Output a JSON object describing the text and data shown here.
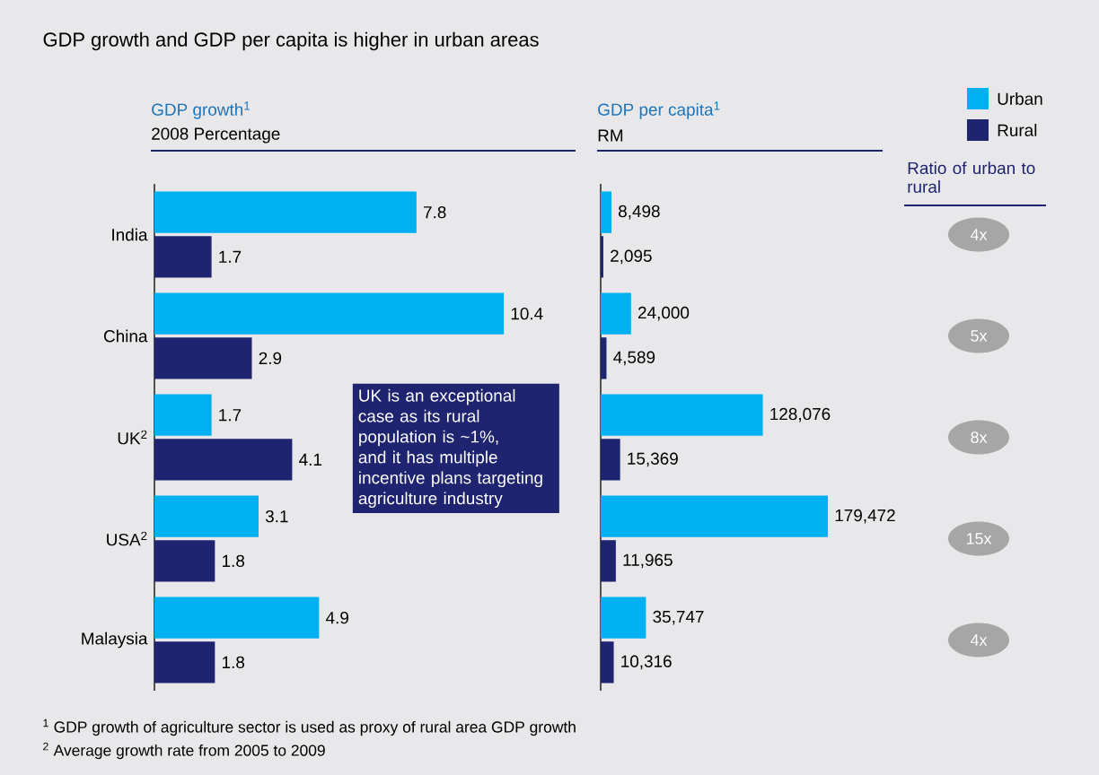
{
  "chart_data": [
    {
      "type": "other",
      "title": "GDP growth and GDP per capita is higher in urban areas",
      "annotations": [
        "$^{1}$ GDP growth of agriculture sector is used as proxy of rural area GDP growth",
        "$^{2}$ Average growth rate from 2005 to 2009"
      ]
    },
    {
      "type": "bar",
      "orientation": "horizontal",
      "title": "GDP growth$^{1}$",
      "subtitle": "2008 Percentage",
      "categories": [
        "India",
        "China",
        "UK$^{2}$",
        "USA$^{2}$",
        "Malaysia"
      ],
      "series": [
        {
          "color": "#00b0f0",
          "values": [
            7.8,
            10.4,
            1.7,
            3.1,
            4.9
          ]
        },
        {
          "color": "#1f2470",
          "values": [
            1.7,
            2.9,
            4.1,
            1.8,
            1.8
          ]
        }
      ],
      "xlim": [
        0,
        12
      ],
      "data_labels": true,
      "tick_labels": "y",
      "annotations": [
        "UK is an exceptional case as its rural population is ~1%, and it has multiple incentive plans targeting agriculture industry"
      ]
    },
    {
      "type": "bar",
      "orientation": "horizontal",
      "title": "GDP per capita$^{1}$",
      "subtitle": "RM",
      "categories": [
        null,
        null,
        null,
        null,
        null
      ],
      "series": [
        {
          "name": "Urban",
          "color": "#00b0f0",
          "values": [
            8498,
            24000,
            128076,
            179472,
            35747
          ],
          "value_labels": [
            "8,498",
            "24,000",
            "128,076",
            "179,472",
            "35,747"
          ]
        },
        {
          "name": "Rural",
          "color": "#1f2470",
          "values": [
            2095,
            4589,
            15369,
            11965,
            10316
          ],
          "value_labels": [
            "2,095",
            "4,589",
            "15,369",
            "11,965",
            "10,316"
          ]
        }
      ],
      "legend": "top right"
    },
    {
      "type": "other",
      "title": "Ratio of urban to rural",
      "annotations": [
        "4x",
        "5x",
        "8x",
        "15x",
        "4x"
      ]
    }
  ]
}
